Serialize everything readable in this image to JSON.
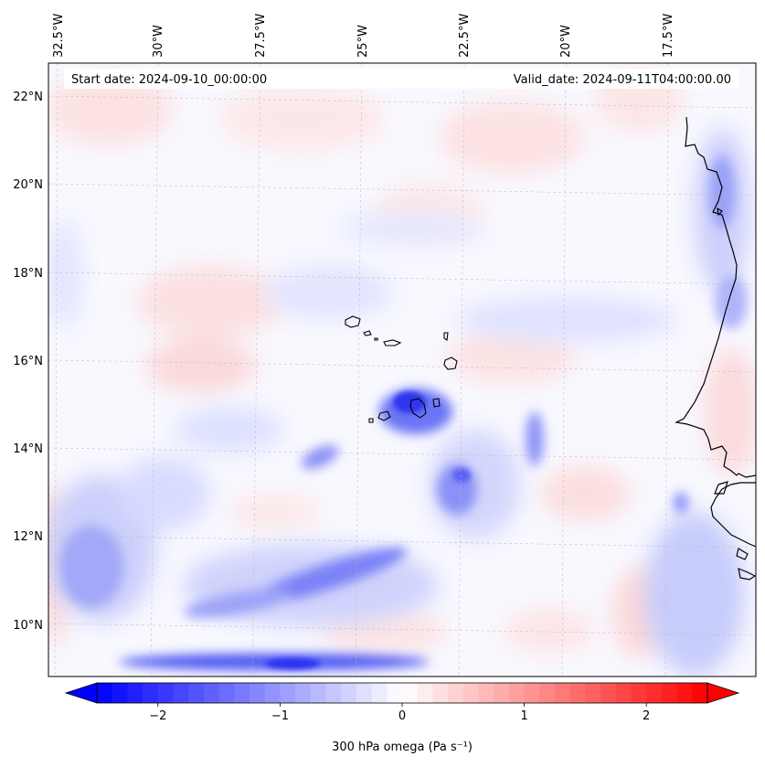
{
  "map": {
    "start_label": "Start date: 2024-09-10_00:00:00",
    "valid_label": "Valid_date: 2024-09-11T04:00:00.00",
    "lon_labels": [
      "32.5°W",
      "30°W",
      "27.5°W",
      "25°W",
      "22.5°W",
      "20°W",
      "17.5°W"
    ],
    "lat_labels": [
      "22°N",
      "20°N",
      "18°N",
      "16°N",
      "14°N",
      "12°N",
      "10°N"
    ],
    "colors": {
      "negative": "#0000ff",
      "positive": "#ff0000",
      "neutral": "#ffffff",
      "coastline": "#000000"
    }
  },
  "colorbar": {
    "label": "300 hPa omega (Pa s⁻¹)",
    "ticks": [
      {
        "value": -2,
        "text": "−2"
      },
      {
        "value": -1,
        "text": "−1"
      },
      {
        "value": 0,
        "text": "0"
      },
      {
        "value": 1,
        "text": "1"
      },
      {
        "value": 2,
        "text": "2"
      }
    ],
    "range": [
      -2.5,
      2.5
    ],
    "levels": 40
  }
}
